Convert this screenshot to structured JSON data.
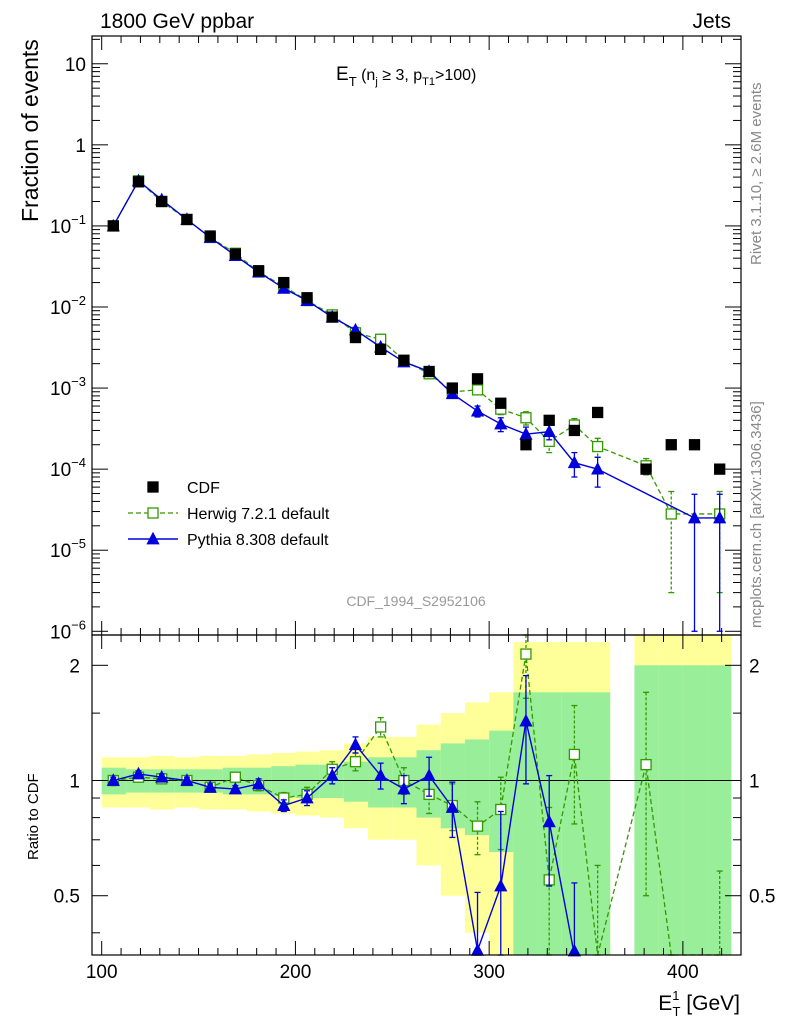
{
  "header": {
    "left": "1800 GeV ppbar",
    "right": "Jets"
  },
  "plot_title": {
    "base": "E",
    "sub": "T",
    "rest_open": " (n",
    "nj_sub": "j",
    "nj_cond": " ≥ 3, p",
    "pt_sub": "T1",
    "pt_cond": ">100)"
  },
  "side_labels": {
    "rivet": "Rivet 3.1.10, ≥ 2.6M events",
    "mcplots": "mcplots.cern.ch [arXiv:1306.3436]"
  },
  "watermark": "CDF_1994_S2952106",
  "main_ylabel": "Fraction of events",
  "ratio_ylabel": "Ratio to CDF",
  "xlabel": {
    "base": "E",
    "sup": "1",
    "sub": "T",
    "unit": " [GeV]"
  },
  "main_yticks": [
    {
      "v": 10,
      "mode": "plain",
      "text": "10"
    },
    {
      "v": 1,
      "mode": "plain",
      "text": "1"
    },
    {
      "v": 0.1,
      "mode": "pow",
      "base": "10",
      "exp": "−1"
    },
    {
      "v": 0.01,
      "mode": "pow",
      "base": "10",
      "exp": "−2"
    },
    {
      "v": 0.001,
      "mode": "pow",
      "base": "10",
      "exp": "−3"
    },
    {
      "v": 0.0001,
      "mode": "pow",
      "base": "10",
      "exp": "−4"
    },
    {
      "v": 1e-05,
      "mode": "pow",
      "base": "10",
      "exp": "−5"
    },
    {
      "v": 1e-06,
      "mode": "pow",
      "base": "10",
      "exp": "−6"
    }
  ],
  "ratio_yticks": [
    {
      "v": 2,
      "text": "2"
    },
    {
      "v": 1,
      "text": "1"
    },
    {
      "v": 0.5,
      "text": "0.5"
    }
  ],
  "xticks": [
    {
      "v": 100,
      "text": "100"
    },
    {
      "v": 200,
      "text": "200"
    },
    {
      "v": 300,
      "text": "300"
    },
    {
      "v": 400,
      "text": "400"
    }
  ],
  "legend": [
    {
      "key": "cdf",
      "label": "CDF"
    },
    {
      "key": "herwig",
      "label": "Herwig 7.2.1 default"
    },
    {
      "key": "pythia",
      "label": "Pythia 8.308 default"
    }
  ],
  "colors": {
    "data": "#000000",
    "herwig": "#339900",
    "pythia": "#0000dd",
    "band_inner": "#99ee99",
    "band_outer": "#ffff99"
  },
  "chart_data": {
    "type": "line",
    "x_scale": "linear",
    "xlim": [
      95,
      430
    ],
    "main": {
      "y_scale": "log",
      "ylim": [
        9e-07,
        22
      ]
    },
    "ratio": {
      "y_scale": "log",
      "ylim": [
        0.35,
        2.4
      ]
    },
    "bin_edges": [
      100,
      112.5,
      125,
      137.5,
      150,
      162.5,
      175,
      187.5,
      200,
      212.5,
      225,
      237.5,
      250,
      262.5,
      275,
      287.5,
      300,
      312.5,
      325,
      337.5,
      350,
      362.5,
      375,
      387.5,
      400,
      412.5,
      425
    ],
    "x": [
      106,
      119,
      131,
      144,
      156,
      169,
      181,
      194,
      206,
      219,
      231,
      244,
      256,
      269,
      281,
      294,
      306,
      319,
      331,
      344,
      356,
      369,
      381,
      394,
      406,
      419
    ],
    "series": [
      {
        "name": "CDF",
        "values": [
          0.1,
          0.35,
          0.2,
          0.12,
          0.075,
          0.045,
          0.028,
          0.02,
          0.013,
          0.0075,
          0.0042,
          0.003,
          0.0022,
          0.0016,
          0.001,
          0.0013,
          0.00065,
          0.0002,
          0.0004,
          0.0003,
          0.0005,
          null,
          0.0001,
          0.0002,
          0.0002,
          0.0001
        ],
        "band_inner": [
          0.08,
          0.07,
          0.07,
          0.07,
          0.07,
          0.08,
          0.08,
          0.09,
          0.1,
          0.1,
          0.12,
          0.15,
          0.15,
          0.2,
          0.25,
          0.28,
          0.35,
          0.7,
          0.7,
          0.7,
          0.7,
          null,
          1.0,
          1.0,
          1.0,
          1.0
        ],
        "band_outer": [
          0.15,
          0.15,
          0.16,
          0.15,
          0.16,
          0.16,
          0.17,
          0.18,
          0.19,
          0.2,
          0.25,
          0.3,
          0.3,
          0.4,
          0.5,
          0.6,
          0.7,
          1.3,
          1.3,
          1.3,
          1.3,
          null,
          2.0,
          2.0,
          2.0,
          2.0
        ]
      },
      {
        "name": "Herwig 7.2.1 default",
        "values": [
          0.1,
          0.36,
          0.2,
          0.12,
          0.072,
          0.046,
          0.027,
          0.018,
          0.012,
          0.008,
          0.0048,
          0.004,
          0.0022,
          0.0015,
          0.0009,
          0.00095,
          0.00055,
          0.00043,
          0.00022,
          0.00035,
          0.00019,
          null,
          0.00011,
          2.8e-05,
          null,
          2.8e-05
        ],
        "errors": [
          0.003,
          0.008,
          0.005,
          0.003,
          0.002,
          0.0015,
          0.001,
          0.0008,
          0.0006,
          0.0004,
          0.0003,
          0.0003,
          0.0002,
          0.00015,
          0.0001,
          0.0001,
          8e-05,
          8e-05,
          6e-05,
          7e-05,
          5e-05,
          null,
          2.5e-05,
          2.5e-05,
          null,
          2.5e-05
        ],
        "ratio": [
          1.0,
          1.02,
          1.01,
          1.0,
          0.96,
          1.02,
          0.97,
          0.9,
          0.92,
          1.07,
          1.12,
          1.38,
          1.0,
          0.92,
          0.86,
          0.76,
          0.84,
          2.14,
          0.55,
          1.17,
          0.3,
          null,
          1.1,
          0.14,
          null,
          0.28
        ],
        "ratio_err": [
          0.03,
          0.02,
          0.02,
          0.02,
          0.02,
          0.02,
          0.03,
          0.03,
          0.04,
          0.05,
          0.06,
          0.08,
          0.08,
          0.1,
          0.12,
          0.12,
          0.18,
          0.5,
          0.3,
          0.4,
          0.3,
          null,
          0.6,
          0.2,
          null,
          0.3
        ]
      },
      {
        "name": "Pythia 8.308 default",
        "values": [
          0.1,
          0.36,
          0.21,
          0.12,
          0.072,
          0.043,
          0.027,
          0.017,
          0.012,
          0.0075,
          0.0052,
          0.0032,
          0.0021,
          0.0016,
          0.00085,
          0.00052,
          0.00036,
          0.00027,
          0.00029,
          0.00012,
          0.0001,
          null,
          null,
          null,
          2.5e-05,
          2.5e-05
        ],
        "errors": [
          0.003,
          0.008,
          0.005,
          0.003,
          0.002,
          0.0015,
          0.001,
          0.0008,
          0.0006,
          0.0004,
          0.0004,
          0.0003,
          0.0002,
          0.00015,
          0.0001,
          8e-05,
          7e-05,
          6e-05,
          6e-05,
          4e-05,
          4e-05,
          null,
          null,
          null,
          2.4e-05,
          2.4e-05
        ],
        "ratio": [
          1.0,
          1.04,
          1.02,
          1.0,
          0.96,
          0.95,
          0.98,
          0.86,
          0.9,
          1.03,
          1.24,
          1.03,
          0.95,
          1.03,
          0.85,
          0.36,
          0.53,
          1.43,
          0.78,
          0.34,
          null,
          null,
          null,
          null,
          null,
          null
        ],
        "ratio_err": [
          0.02,
          0.02,
          0.02,
          0.02,
          0.02,
          0.02,
          0.03,
          0.03,
          0.04,
          0.05,
          0.06,
          0.08,
          0.08,
          0.12,
          0.14,
          0.15,
          0.3,
          0.45,
          0.25,
          0.2,
          null,
          null,
          null,
          null,
          null,
          null
        ]
      }
    ]
  }
}
